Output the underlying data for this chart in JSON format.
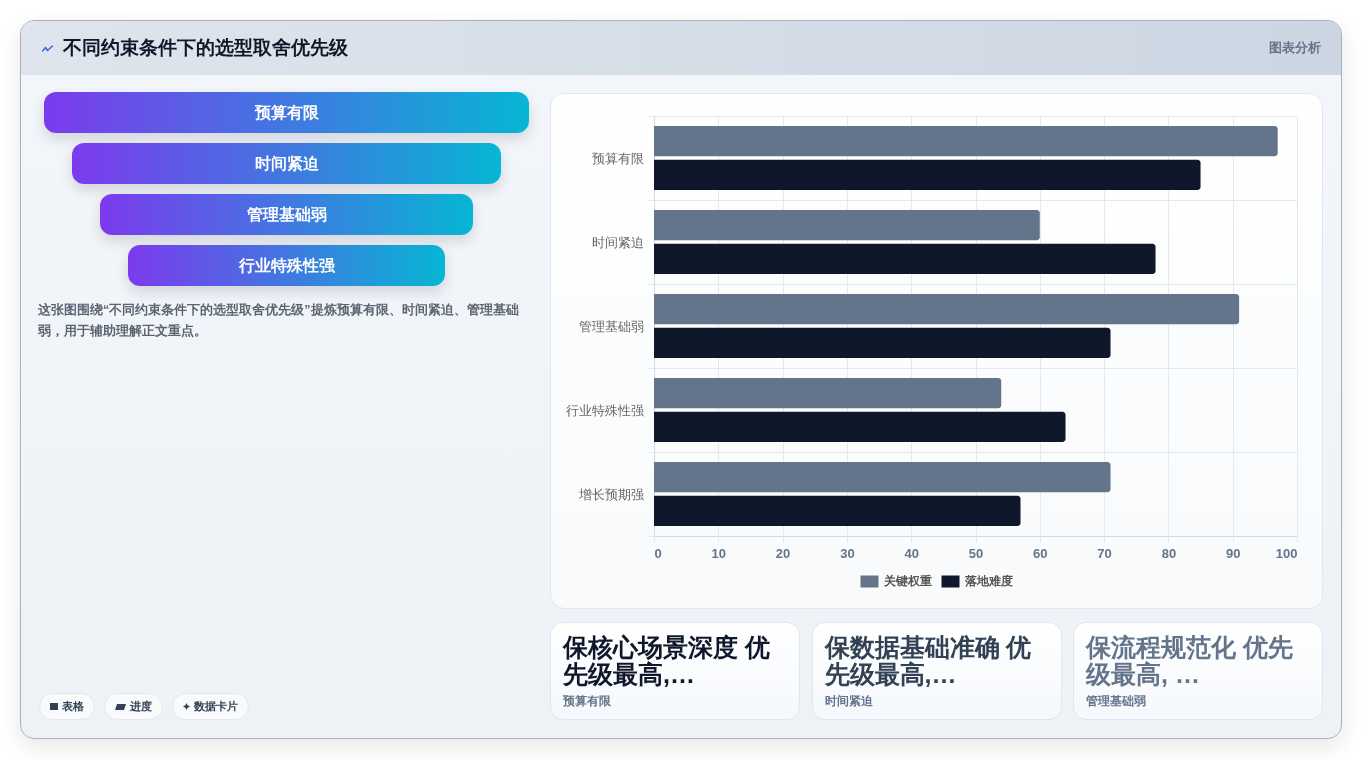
{
  "chart_data": [
    {
      "type": "other",
      "title": "不同约束条件下的选型取舍优先级",
      "categories": [
        "预算有限",
        "时间紧迫",
        "管理基础弱",
        "行业特殊性强"
      ],
      "annotations": [
        "图表分析",
        "这张图围绕“不同约束条件下的选型取舍优先级”提炼预算有限、时间紧迫、管理基础弱，用于辅助理解正文重点。",
        "表格",
        "进度",
        "数据卡片"
      ]
    },
    {
      "type": "bar",
      "orientation": "horizontal",
      "categories": [
        "预算有限",
        "时间紧迫",
        "管理基础弱",
        "行业特殊性强",
        "增长预期强"
      ],
      "series": [
        {
          "name": "关键权重",
          "color": "#64748b",
          "values": [
            97,
            60,
            91,
            54,
            71
          ]
        },
        {
          "name": "落地难度",
          "color": "#0f172a",
          "values": [
            85,
            78,
            71,
            64,
            57
          ]
        }
      ],
      "xlim": [
        0,
        100
      ],
      "xticks": [
        0,
        10,
        20,
        30,
        40,
        50,
        60,
        70,
        80,
        90,
        100
      ],
      "grid": true,
      "legend": "bottom"
    },
    {
      "type": "other",
      "categories": [
        "预算有限",
        "时间紧迫",
        "管理基础弱"
      ],
      "annotations": [
        "保核心场景深度 优先级最高,…",
        "保数据基础准确 优先级最高,…",
        "保流程规范化 优先级最高, …"
      ]
    }
  ]
}
